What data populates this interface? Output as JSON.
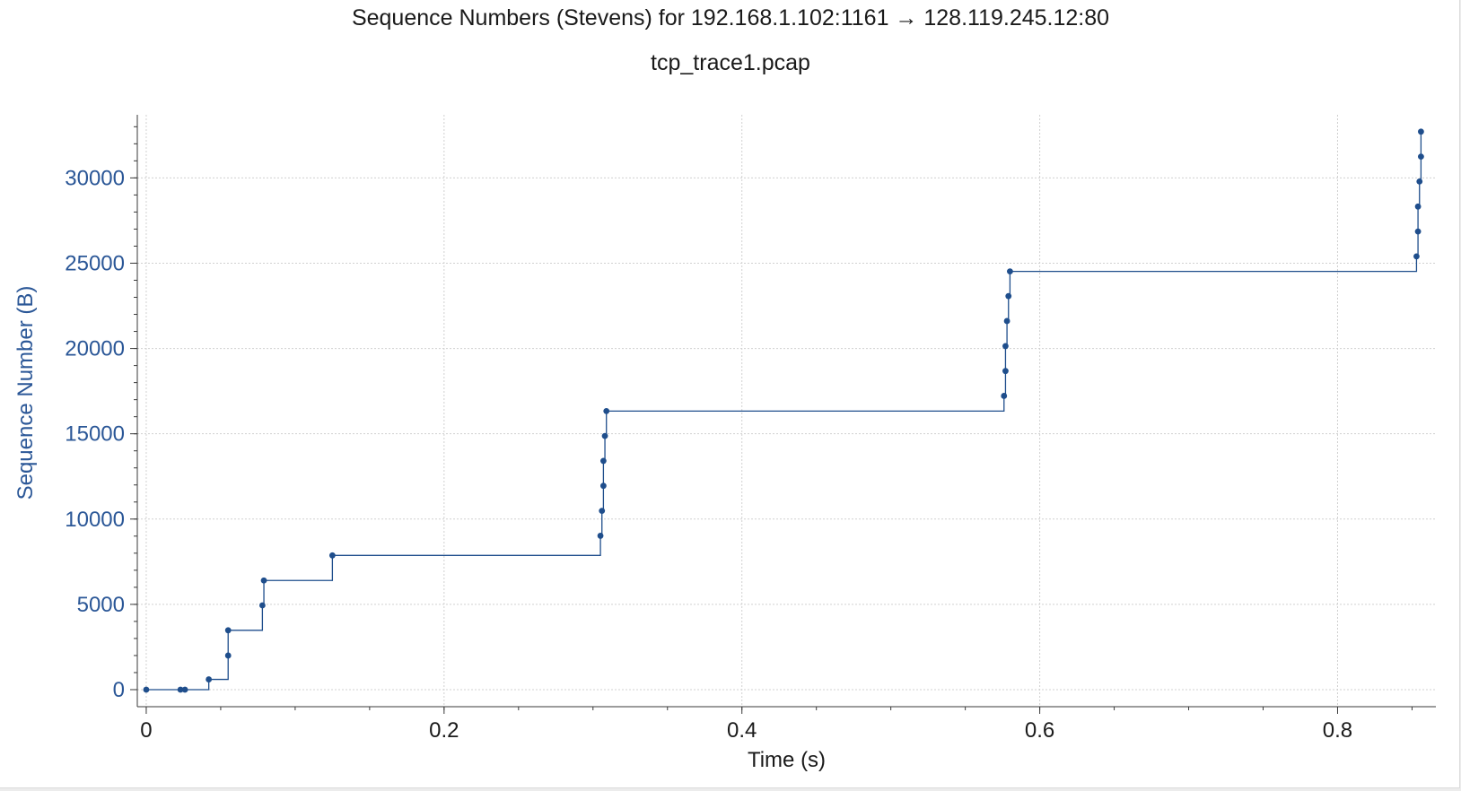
{
  "chart_data": {
    "type": "line",
    "title": "Sequence Numbers (Stevens) for 192.168.1.102:1161 → 128.119.245.12:80",
    "subtitle": "tcp_trace1.pcap",
    "xlabel": "Time (s)",
    "ylabel": "Sequence Number (B)",
    "xlim": [
      -0.006,
      0.866
    ],
    "ylim": [
      -1000,
      33700
    ],
    "xticks": [
      "0",
      "0.2",
      "0.4",
      "0.6",
      "0.8"
    ],
    "xtick_values": [
      0,
      0.2,
      0.4,
      0.6,
      0.8
    ],
    "yticks": [
      "0",
      "5000",
      "10000",
      "15000",
      "20000",
      "25000",
      "30000"
    ],
    "ytick_values": [
      0,
      5000,
      10000,
      15000,
      20000,
      25000,
      30000
    ],
    "grid": true,
    "step": true,
    "colors": {
      "series": "#1f4e8c",
      "ylabel": "#2b5797",
      "axis": "#3a3a3a",
      "grid": "#d0d0d0"
    },
    "series": [
      {
        "x": [
          0.0,
          0.023,
          0.026,
          0.042,
          0.055,
          0.055,
          0.078,
          0.079,
          0.125,
          0.305,
          0.306,
          0.307,
          0.307,
          0.308,
          0.309,
          0.576,
          0.577,
          0.577,
          0.578,
          0.579,
          0.58,
          0.853,
          0.854,
          0.854,
          0.855,
          0.856,
          0.856
        ],
        "y": [
          0,
          0,
          0,
          600,
          2000,
          3480,
          4940,
          6400,
          7870,
          9020,
          10480,
          11950,
          13410,
          14870,
          16330,
          17220,
          18680,
          20140,
          21610,
          23070,
          24520,
          25400,
          26860,
          28320,
          29790,
          31250,
          32710
        ]
      }
    ]
  }
}
